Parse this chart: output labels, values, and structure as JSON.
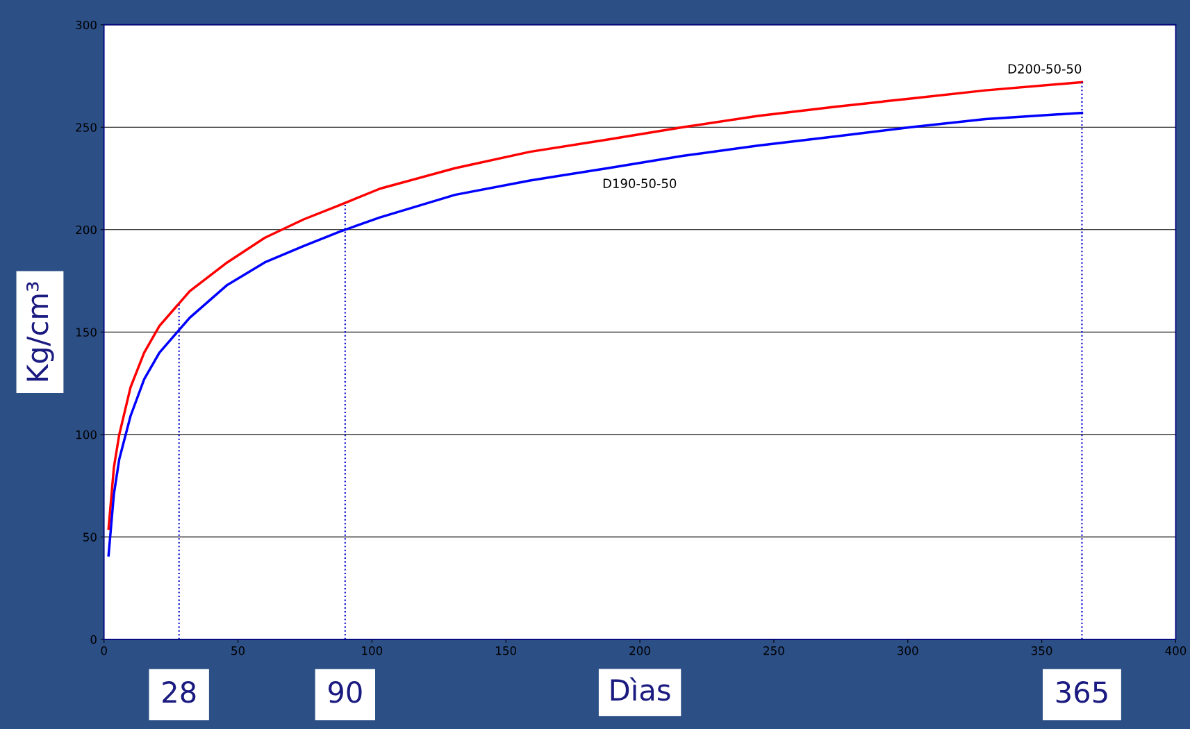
{
  "chart_data": {
    "type": "line",
    "xlabel": "Dìas",
    "ylabel": "Kg/cm³",
    "xlim": [
      0,
      400
    ],
    "xticks": [
      0,
      50,
      100,
      150,
      200,
      250,
      300,
      350,
      400
    ],
    "ylim": [
      0,
      300
    ],
    "yticks": [
      0,
      50,
      100,
      150,
      200,
      250,
      300
    ],
    "grid": "y",
    "legend": false,
    "marker": "none",
    "line_style": "solid",
    "series": [
      {
        "name": "D200-50-50",
        "color": "#ff0000",
        "x": [
          1.7,
          3.7,
          5.7,
          9.9,
          15,
          20.7,
          32,
          46,
          60,
          74.5,
          88,
          103,
          131,
          159,
          188,
          216,
          244,
          273,
          301,
          329,
          365
        ],
        "values": [
          54,
          84,
          100,
          123,
          140,
          153,
          170,
          184,
          196,
          205,
          212,
          220,
          230,
          238,
          244,
          250,
          255.5,
          260,
          264,
          268,
          272
        ]
      },
      {
        "name": "D190-50-50",
        "color": "#0000ff",
        "x": [
          1.7,
          3.7,
          5.7,
          9.9,
          15,
          20.7,
          32,
          46,
          60,
          74.5,
          88,
          103,
          131,
          159,
          188,
          216,
          244,
          273,
          301,
          329,
          365
        ],
        "values": [
          41,
          71,
          88,
          109,
          127,
          140,
          157,
          173,
          184,
          192,
          199,
          206,
          217,
          224,
          230,
          236,
          241,
          245.5,
          250,
          254,
          257
        ]
      }
    ],
    "ref_lines": [
      {
        "axis": "x",
        "value": 28,
        "label": "28",
        "color": "#0000cc",
        "line_style": "dotted"
      },
      {
        "axis": "x",
        "value": 90,
        "label": "90",
        "color": "#0000cc",
        "line_style": "dotted"
      },
      {
        "axis": "x",
        "value": 365,
        "label": "365",
        "color": "#0000cc",
        "line_style": "dotted"
      }
    ]
  }
}
